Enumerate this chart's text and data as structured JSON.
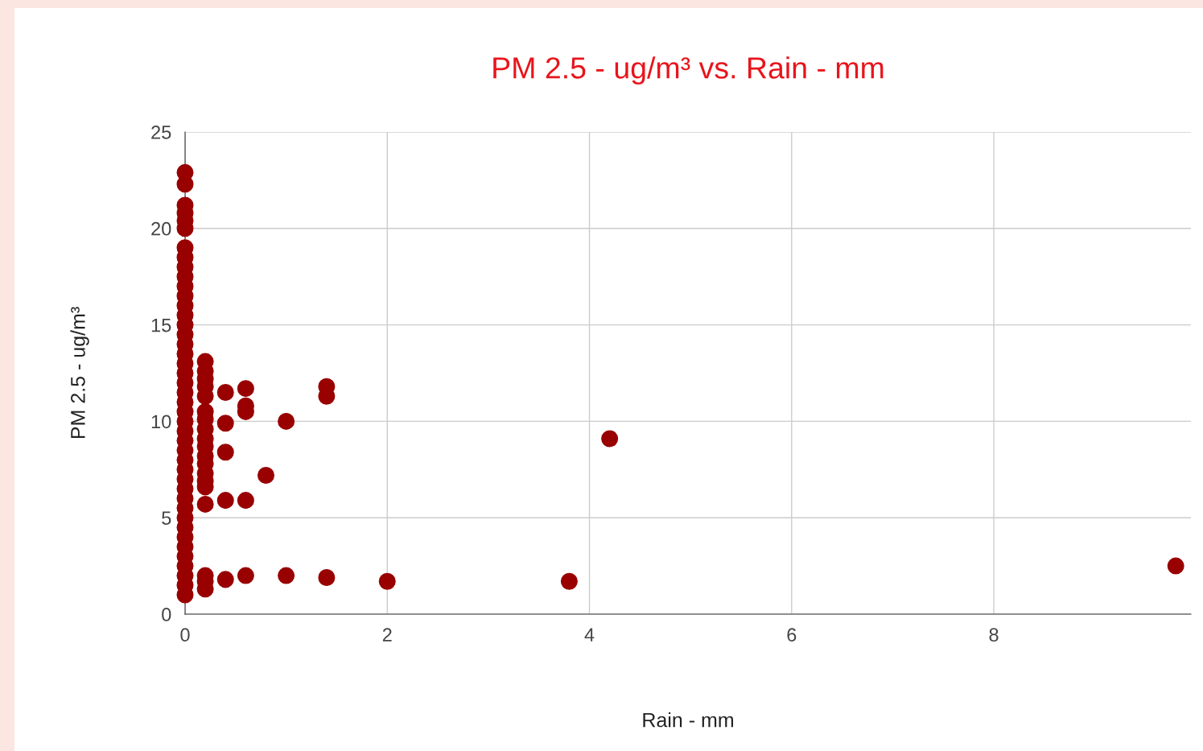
{
  "chart_data": {
    "type": "scatter",
    "title": "PM 2.5 - ug/m³ vs. Rain - mm",
    "xlabel": "Rain - mm",
    "ylabel": "PM 2.5 - ug/m³",
    "series": [
      {
        "color": "#990000",
        "x": [
          0,
          0,
          0,
          0,
          0,
          0,
          0,
          0,
          0,
          0,
          0,
          0,
          0,
          0,
          0,
          0,
          0,
          0,
          0,
          0,
          0,
          0,
          0,
          0,
          0,
          0,
          0,
          0,
          0,
          0,
          0,
          0,
          0,
          0,
          0,
          0,
          0,
          0,
          0,
          0,
          0,
          0,
          0,
          0.2,
          0.2,
          0.2,
          0.2,
          0.2,
          0.2,
          0.2,
          0.2,
          0.2,
          0.2,
          0.2,
          0.2,
          0.2,
          0.2,
          0.2,
          0.2,
          0.2,
          0.2,
          0.2,
          0.4,
          0.4,
          0.4,
          0.4,
          0.4,
          0.6,
          0.6,
          0.6,
          0.6,
          0.6,
          0.8,
          1.0,
          1.0,
          1.4,
          1.4,
          1.4,
          2.0,
          3.8,
          4.2,
          9.8
        ],
        "values": [
          1.0,
          1.5,
          2.0,
          2.5,
          3.0,
          3.5,
          4.0,
          4.5,
          5.0,
          5.5,
          6.0,
          6.5,
          7.0,
          7.5,
          8.0,
          8.5,
          9.0,
          9.5,
          10.0,
          10.5,
          11.0,
          11.5,
          12.0,
          12.5,
          13.0,
          13.5,
          14.0,
          14.5,
          15.0,
          15.5,
          16.0,
          16.5,
          17.0,
          17.5,
          18.0,
          18.5,
          19.0,
          20.0,
          20.4,
          20.8,
          21.2,
          22.3,
          22.9,
          13.1,
          12.6,
          12.2,
          11.8,
          11.3,
          10.5,
          10.1,
          9.6,
          9.1,
          8.7,
          8.2,
          7.8,
          7.3,
          6.9,
          6.6,
          5.7,
          2.0,
          1.7,
          1.3,
          11.5,
          9.9,
          8.4,
          5.9,
          1.8,
          11.7,
          10.8,
          10.5,
          5.9,
          2.0,
          7.2,
          10.0,
          2.0,
          11.8,
          11.3,
          1.9,
          1.7,
          1.7,
          9.1,
          2.5
        ]
      }
    ],
    "xlim": [
      0,
      9.95
    ],
    "xticks": [
      0,
      2,
      4,
      6,
      8
    ],
    "ylim": [
      0,
      25
    ],
    "yticks": [
      0,
      5,
      10,
      15,
      20,
      25
    ],
    "grid": true,
    "marker": "circle"
  }
}
